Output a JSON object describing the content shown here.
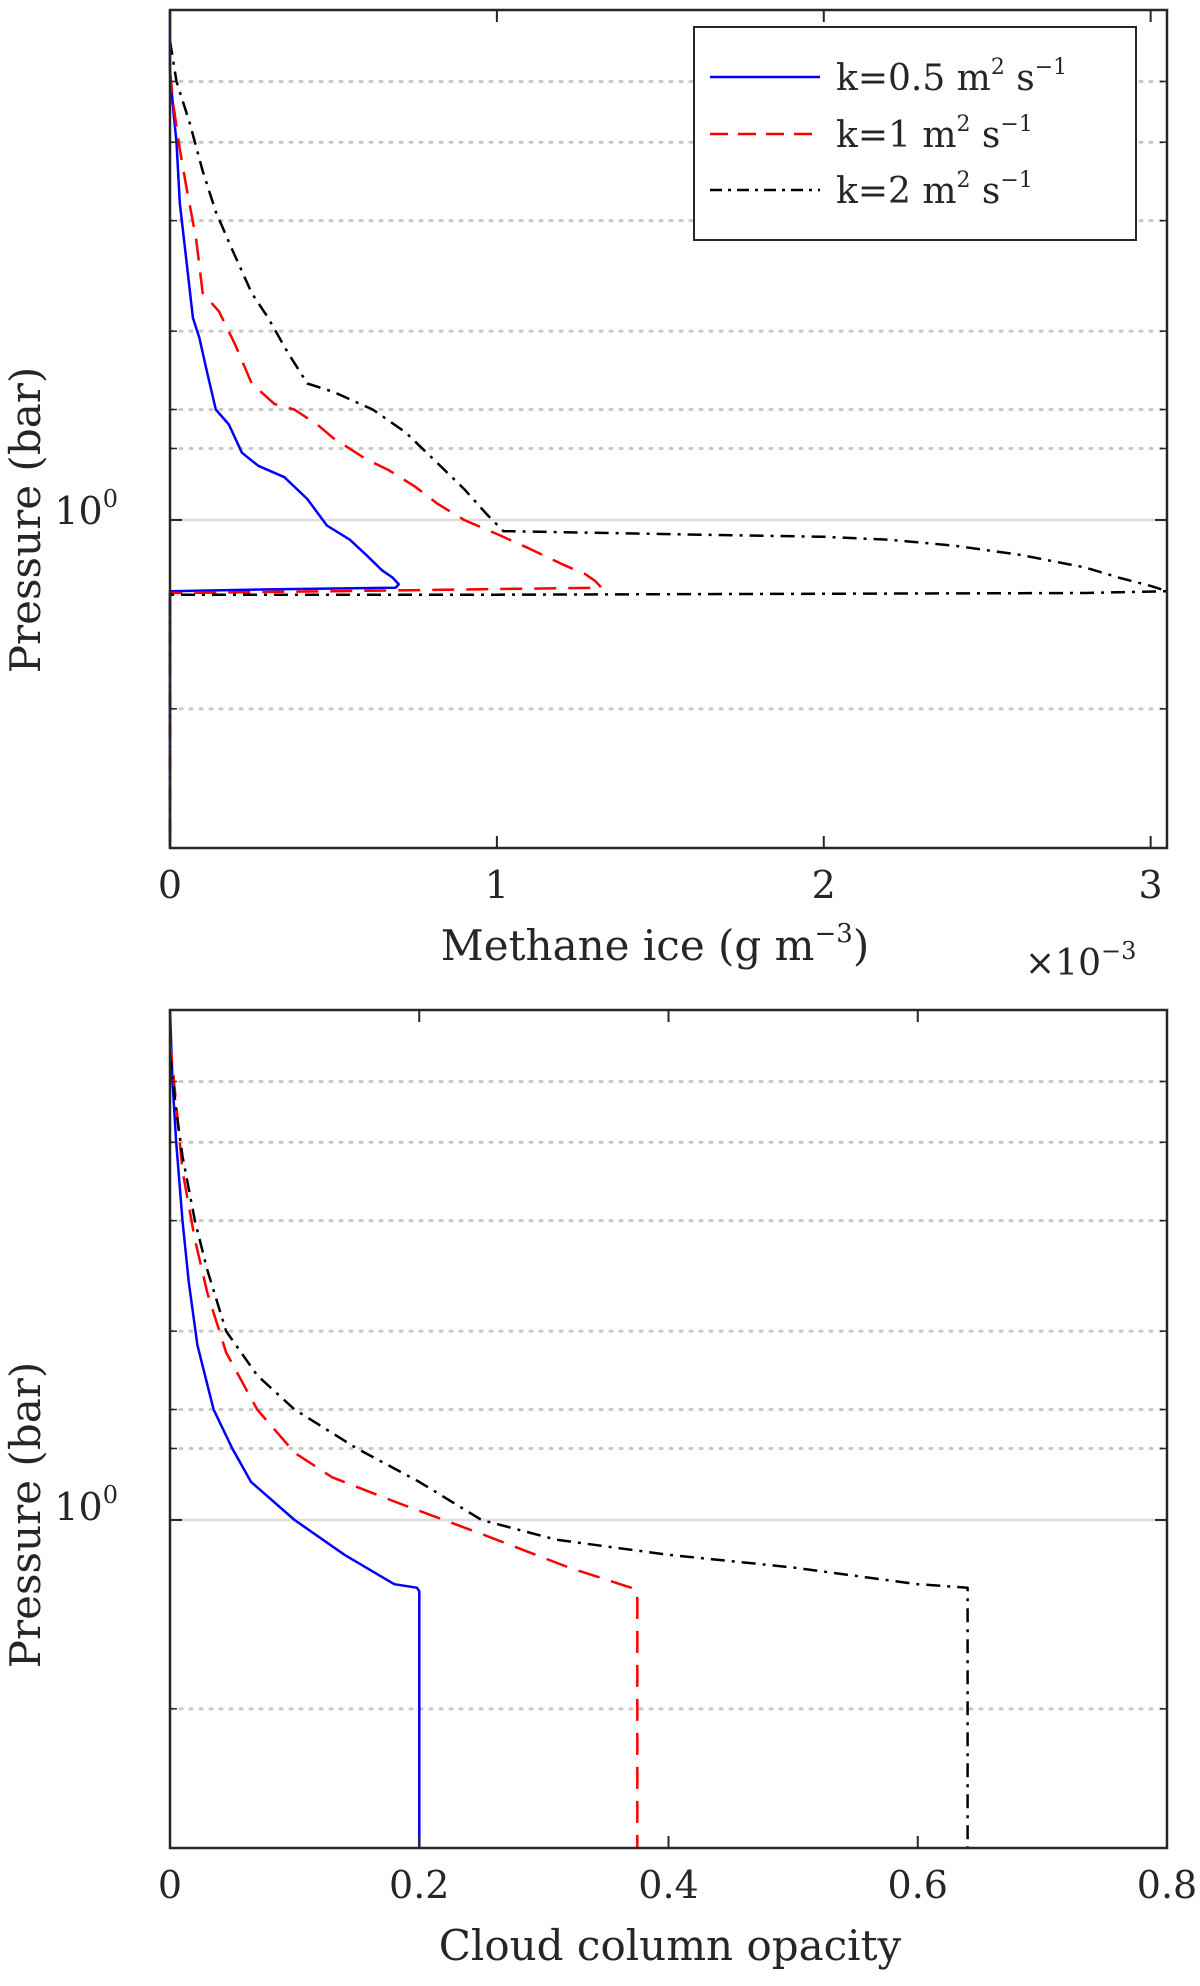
{
  "chart_data": [
    {
      "type": "line",
      "xlabel": "Methane ice (g m",
      "xlabel_sup": "−3",
      "xlabel_close": ")",
      "ylabel": "Pressure (bar)",
      "x_exponent_label": "×10",
      "x_exponent_sup": "−3",
      "x_multiplier": 0.001,
      "xlim": [
        0,
        3.05
      ],
      "xticks": [
        0,
        1,
        2,
        3
      ],
      "yscale": "log",
      "ylim": [
        0.3,
        6.5
      ],
      "ytick_value": 1,
      "ytick_label_base": "10",
      "ytick_label_sup": "0",
      "y_grid_dotted": [
        0.5,
        1.3,
        1.5,
        2,
        3,
        4,
        5
      ],
      "y_grid_solid": [
        1
      ],
      "legend": {
        "location": "top-right",
        "entries": [
          {
            "base": "k=0.5 m",
            "sup1": "2",
            "mid": " s",
            "sup2": "−1"
          },
          {
            "base": "k=1 m",
            "sup1": "2",
            "mid": " s",
            "sup2": "−1"
          },
          {
            "base": "k=2 m",
            "sup1": "2",
            "mid": " s",
            "sup2": "−1"
          }
        ]
      },
      "series": [
        {
          "name": "k=0.5 m2 s-1",
          "color": "#0000ff",
          "dash": "solid",
          "x": [
            0,
            0,
            0.01,
            0.02,
            0.03,
            0.05,
            0.07,
            0.09,
            0.11,
            0.14,
            0.18,
            0.22,
            0.27,
            0.35,
            0.42,
            0.48,
            0.55,
            0.6,
            0.65,
            0.68,
            0.7,
            0.69,
            0.3,
            0,
            0,
            0
          ],
          "y": [
            6.5,
            5.2,
            4.5,
            4.0,
            3.2,
            2.6,
            2.1,
            1.95,
            1.75,
            1.5,
            1.42,
            1.28,
            1.22,
            1.17,
            1.08,
            0.98,
            0.93,
            0.88,
            0.83,
            0.81,
            0.79,
            0.78,
            0.775,
            0.77,
            0.5,
            0.3
          ]
        },
        {
          "name": "k=1 m2 s-1",
          "color": "#ff0000",
          "dash": "long-dash",
          "x": [
            0,
            0.01,
            0.03,
            0.05,
            0.08,
            0.1,
            0.15,
            0.2,
            0.25,
            0.32,
            0.38,
            0.45,
            0.5,
            0.6,
            0.67,
            0.75,
            0.82,
            0.9,
            1.0,
            1.1,
            1.2,
            1.27,
            1.3,
            1.32,
            0.5,
            0,
            0
          ],
          "y": [
            5.2,
            4.6,
            3.9,
            3.4,
            2.8,
            2.3,
            2.15,
            1.9,
            1.65,
            1.53,
            1.5,
            1.42,
            1.35,
            1.25,
            1.2,
            1.13,
            1.06,
            1.0,
            0.95,
            0.9,
            0.85,
            0.82,
            0.8,
            0.78,
            0.77,
            0.765,
            0.3
          ]
        },
        {
          "name": "k=2 m2 s-1",
          "color": "#000000",
          "dash": "dash-dot",
          "x": [
            0,
            0.02,
            0.06,
            0.1,
            0.14,
            0.19,
            0.25,
            0.3,
            0.36,
            0.42,
            0.5,
            0.62,
            0.72,
            0.82,
            0.9,
            0.97,
            1.02,
            1.5,
            2.0,
            2.2,
            2.4,
            2.6,
            2.8,
            2.9,
            3.0,
            3.05,
            2.8,
            1.0,
            0,
            0
          ],
          "y": [
            5.8,
            5.0,
            4.3,
            3.6,
            3.1,
            2.7,
            2.3,
            2.1,
            1.85,
            1.65,
            1.6,
            1.5,
            1.38,
            1.23,
            1.12,
            1.02,
            0.96,
            0.95,
            0.94,
            0.93,
            0.91,
            0.88,
            0.84,
            0.81,
            0.785,
            0.77,
            0.765,
            0.76,
            0.76,
            0.3
          ]
        }
      ]
    },
    {
      "type": "line",
      "xlabel": "Cloud column opacity",
      "ylabel": "Pressure (bar)",
      "xlim": [
        0,
        0.8
      ],
      "xticks": [
        0,
        0.2,
        0.4,
        0.6,
        0.8
      ],
      "xtick_labels": [
        "0",
        "0.2",
        "0.4",
        "0.6",
        "0.8"
      ],
      "yscale": "log",
      "ylim": [
        0.3,
        6.5
      ],
      "ytick_value": 1,
      "ytick_label_base": "10",
      "ytick_label_sup": "0",
      "y_grid_dotted": [
        0.5,
        1.3,
        1.5,
        2,
        3,
        4,
        5
      ],
      "y_grid_solid": [
        1
      ],
      "series": [
        {
          "name": "k=0.5 m2 s-1",
          "color": "#0000ff",
          "dash": "solid",
          "x": [
            0,
            0.002,
            0.005,
            0.01,
            0.015,
            0.022,
            0.035,
            0.05,
            0.065,
            0.1,
            0.14,
            0.18,
            0.198,
            0.2,
            0.2
          ],
          "y": [
            6.5,
            5.0,
            4.0,
            3.0,
            2.4,
            1.9,
            1.5,
            1.3,
            1.15,
            1.0,
            0.88,
            0.79,
            0.78,
            0.77,
            0.3
          ]
        },
        {
          "name": "k=1 m2 s-1",
          "color": "#ff0000",
          "dash": "long-dash",
          "x": [
            0,
            0.005,
            0.01,
            0.02,
            0.03,
            0.045,
            0.07,
            0.1,
            0.13,
            0.18,
            0.25,
            0.32,
            0.37,
            0.375,
            0.375
          ],
          "y": [
            5.8,
            4.6,
            3.6,
            2.8,
            2.3,
            1.85,
            1.5,
            1.28,
            1.17,
            1.07,
            0.95,
            0.84,
            0.78,
            0.77,
            0.3
          ]
        },
        {
          "name": "k=2 m2 s-1",
          "color": "#000000",
          "dash": "dash-dot",
          "x": [
            0,
            0.005,
            0.01,
            0.02,
            0.03,
            0.045,
            0.07,
            0.1,
            0.15,
            0.2,
            0.25,
            0.31,
            0.4,
            0.5,
            0.6,
            0.64,
            0.64
          ],
          "y": [
            5.5,
            4.5,
            3.8,
            3.0,
            2.5,
            2.0,
            1.7,
            1.5,
            1.3,
            1.15,
            1.0,
            0.93,
            0.88,
            0.84,
            0.79,
            0.78,
            0.3
          ]
        }
      ]
    }
  ]
}
